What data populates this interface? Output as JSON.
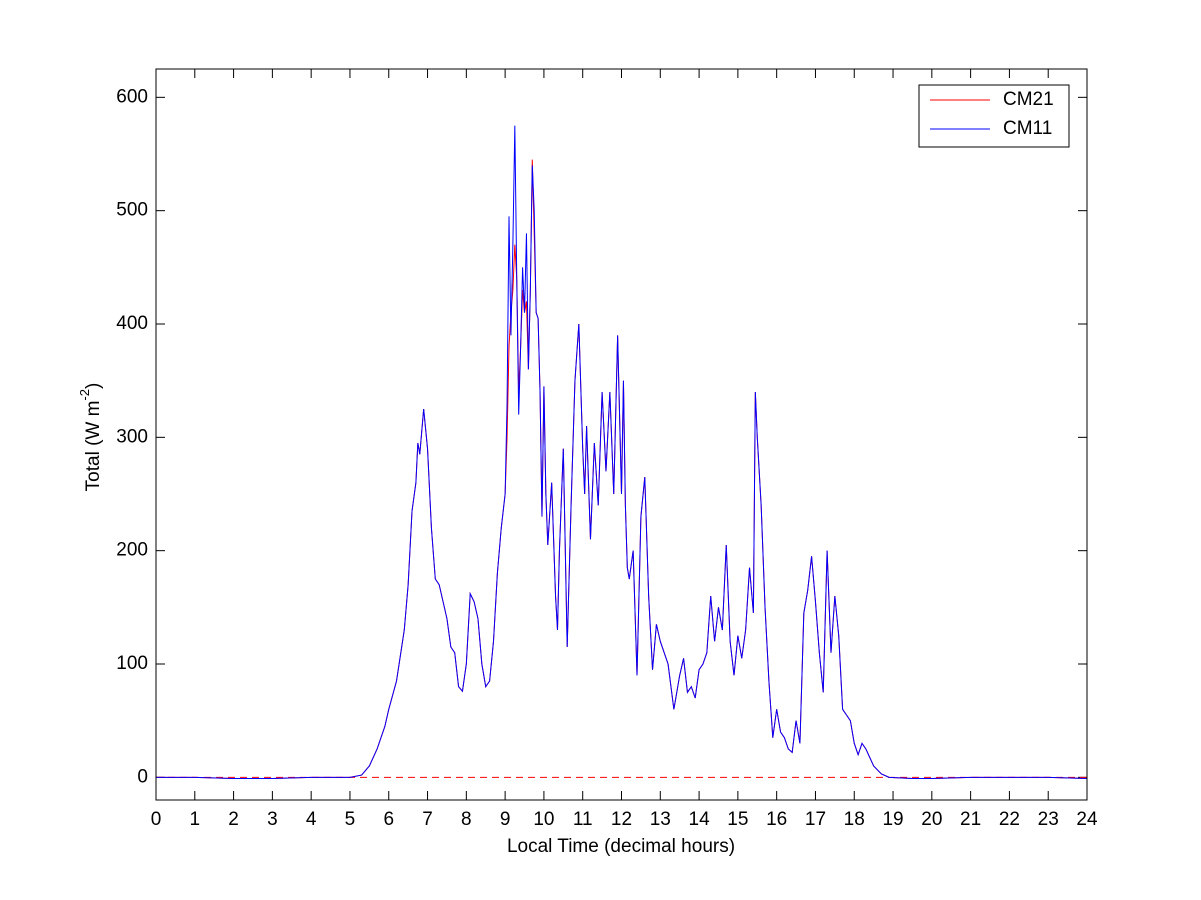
{
  "chart_data": {
    "type": "line",
    "xlabel": "Local Time (decimal hours)",
    "ylabel": [
      "Total (W m",
      "-2",
      ")"
    ],
    "xlim": [
      0,
      24
    ],
    "ylim": [
      -20,
      625
    ],
    "xticks": [
      0,
      1,
      2,
      3,
      4,
      5,
      6,
      7,
      8,
      9,
      10,
      11,
      12,
      13,
      14,
      15,
      16,
      17,
      18,
      19,
      20,
      21,
      22,
      23,
      24
    ],
    "yticks": [
      0,
      100,
      200,
      300,
      400,
      500,
      600
    ],
    "grid": false,
    "legend": "northeast",
    "hline": {
      "value": 0,
      "color": "#ff0000",
      "style": "dashed"
    },
    "x": [
      0,
      1,
      2,
      3,
      4,
      5,
      5.3,
      5.5,
      5.7,
      5.9,
      6,
      6.2,
      6.4,
      6.5,
      6.6,
      6.7,
      6.75,
      6.8,
      6.9,
      7,
      7.1,
      7.2,
      7.3,
      7.5,
      7.6,
      7.7,
      7.8,
      7.9,
      8,
      8.1,
      8.2,
      8.3,
      8.4,
      8.5,
      8.6,
      8.7,
      8.8,
      8.9,
      9,
      9.05,
      9.1,
      9.15,
      9.2,
      9.25,
      9.3,
      9.35,
      9.4,
      9.45,
      9.5,
      9.55,
      9.6,
      9.65,
      9.7,
      9.75,
      9.8,
      9.85,
      9.9,
      9.95,
      10,
      10.05,
      10.1,
      10.2,
      10.3,
      10.35,
      10.4,
      10.5,
      10.6,
      10.7,
      10.8,
      10.9,
      11,
      11.05,
      11.1,
      11.2,
      11.3,
      11.4,
      11.5,
      11.6,
      11.7,
      11.8,
      11.9,
      12,
      12.05,
      12.1,
      12.15,
      12.2,
      12.3,
      12.4,
      12.5,
      12.6,
      12.7,
      12.8,
      12.9,
      13,
      13.2,
      13.35,
      13.5,
      13.6,
      13.7,
      13.8,
      13.9,
      14,
      14.1,
      14.2,
      14.3,
      14.4,
      14.5,
      14.6,
      14.7,
      14.8,
      14.9,
      15,
      15.1,
      15.2,
      15.3,
      15.4,
      15.45,
      15.5,
      15.6,
      15.7,
      15.8,
      15.9,
      16,
      16.1,
      16.2,
      16.3,
      16.4,
      16.5,
      16.6,
      16.7,
      16.8,
      16.9,
      17,
      17.1,
      17.2,
      17.3,
      17.4,
      17.5,
      17.6,
      17.7,
      17.8,
      17.9,
      18,
      18.1,
      18.2,
      18.3,
      18.5,
      18.7,
      18.9,
      19.5,
      20,
      21,
      22,
      23,
      24
    ],
    "series": [
      {
        "name": "CM21",
        "color": "#ff0000",
        "values": [
          0,
          0,
          -1,
          -1,
          0,
          0,
          2,
          10,
          25,
          45,
          60,
          85,
          130,
          170,
          235,
          260,
          295,
          285,
          325,
          290,
          220,
          175,
          170,
          140,
          115,
          110,
          80,
          76,
          100,
          162,
          155,
          140,
          100,
          80,
          85,
          120,
          180,
          220,
          250,
          300,
          380,
          410,
          430,
          470,
          440,
          340,
          380,
          430,
          410,
          420,
          360,
          430,
          545,
          480,
          410,
          405,
          340,
          230,
          345,
          250,
          205,
          260,
          160,
          130,
          200,
          290,
          115,
          240,
          350,
          400,
          290,
          250,
          310,
          210,
          295,
          240,
          340,
          270,
          340,
          250,
          390,
          250,
          350,
          240,
          185,
          175,
          200,
          90,
          230,
          265,
          160,
          95,
          135,
          120,
          100,
          60,
          90,
          105,
          75,
          80,
          70,
          95,
          100,
          110,
          160,
          120,
          150,
          130,
          205,
          120,
          90,
          125,
          105,
          130,
          185,
          145,
          340,
          300,
          240,
          150,
          85,
          35,
          60,
          40,
          35,
          25,
          22,
          50,
          30,
          145,
          165,
          195,
          155,
          110,
          75,
          200,
          110,
          160,
          125,
          60,
          55,
          50,
          30,
          20,
          30,
          25,
          10,
          3,
          0,
          -1,
          -1,
          0,
          0,
          0,
          -1
        ]
      },
      {
        "name": "CM11",
        "color": "#0000ff",
        "values": [
          0,
          0,
          -1,
          -1,
          0,
          0,
          2,
          10,
          25,
          45,
          60,
          85,
          130,
          170,
          235,
          260,
          295,
          285,
          325,
          290,
          220,
          175,
          170,
          140,
          115,
          110,
          80,
          76,
          100,
          162,
          155,
          140,
          100,
          80,
          85,
          120,
          180,
          220,
          250,
          330,
          495,
          390,
          470,
          575,
          440,
          320,
          380,
          450,
          410,
          480,
          360,
          430,
          540,
          500,
          410,
          405,
          340,
          230,
          345,
          250,
          205,
          260,
          160,
          130,
          200,
          290,
          115,
          240,
          350,
          400,
          290,
          250,
          310,
          210,
          295,
          240,
          340,
          270,
          340,
          250,
          390,
          250,
          350,
          240,
          185,
          175,
          200,
          90,
          230,
          265,
          160,
          95,
          135,
          120,
          100,
          60,
          90,
          105,
          75,
          80,
          70,
          95,
          100,
          110,
          160,
          120,
          150,
          130,
          205,
          120,
          90,
          125,
          105,
          130,
          185,
          145,
          340,
          300,
          240,
          150,
          85,
          35,
          60,
          40,
          35,
          25,
          22,
          50,
          30,
          145,
          165,
          195,
          155,
          110,
          75,
          200,
          110,
          160,
          125,
          60,
          55,
          50,
          30,
          20,
          30,
          25,
          10,
          3,
          0,
          -1,
          -1,
          0,
          0,
          0,
          -1
        ]
      }
    ]
  }
}
